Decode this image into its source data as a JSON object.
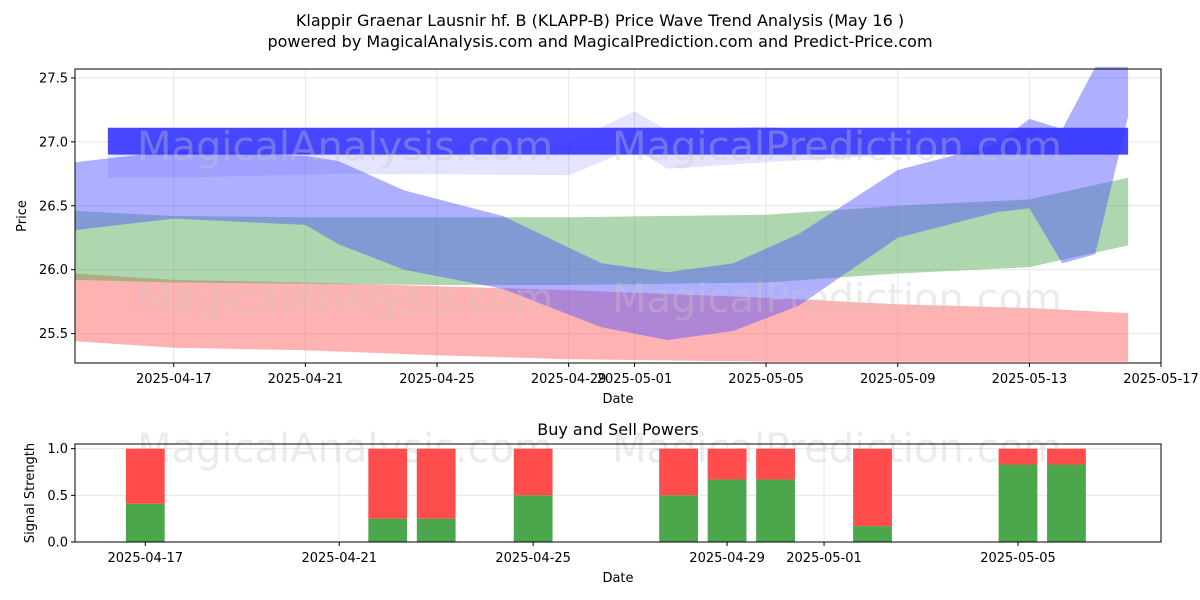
{
  "figure": {
    "title_line1": "Klappir Graenar Lausnir hf. B (KLAPP-B) Price Wave Trend Analysis (May 16 )",
    "title_line2": "powered by MagicalAnalysis.com and MagicalPrediction.com and Predict-Price.com",
    "watermarks": [
      "MagicalAnalysis.com",
      "MagicalPrediction.com"
    ]
  },
  "colors": {
    "blue": "#4d4dff",
    "green": "#4da64d",
    "red": "#ff6666",
    "buy": "#4ca64c",
    "sell": "#ff4c4c",
    "grid": "#e6e6e6"
  },
  "chart_data": [
    {
      "type": "area",
      "title": "",
      "xlabel": "Date",
      "ylabel": "Price",
      "x_range": [
        "2025-04-14",
        "2025-05-17"
      ],
      "ylim": [
        25.27,
        27.57
      ],
      "x_ticks": [
        "2025-04-17",
        "2025-04-21",
        "2025-04-25",
        "2025-04-29",
        "2025-05-01",
        "2025-05-05",
        "2025-05-09",
        "2025-05-13",
        "2025-05-17"
      ],
      "y_ticks": [
        25.5,
        26.0,
        26.5,
        27.0,
        27.5
      ],
      "grid": true,
      "series": [
        {
          "color": "#ff6666",
          "opacity": 0.5,
          "x": [
            "2025-04-14",
            "2025-04-17",
            "2025-04-21",
            "2025-04-25",
            "2025-04-29",
            "2025-05-05",
            "2025-05-09",
            "2025-05-13",
            "2025-05-16"
          ],
          "upper": [
            25.97,
            25.92,
            25.9,
            25.87,
            25.84,
            25.78,
            25.73,
            25.7,
            25.66
          ],
          "lower": [
            25.44,
            25.39,
            25.37,
            25.33,
            25.3,
            25.28,
            25.28,
            25.28,
            25.28
          ]
        },
        {
          "color": "#4da64d",
          "opacity": 0.45,
          "x": [
            "2025-04-14",
            "2025-04-17",
            "2025-04-21",
            "2025-04-25",
            "2025-04-29",
            "2025-05-05",
            "2025-05-09",
            "2025-05-13",
            "2025-05-16"
          ],
          "upper": [
            26.46,
            26.42,
            26.41,
            26.41,
            26.41,
            26.43,
            26.5,
            26.55,
            26.72
          ],
          "lower": [
            25.92,
            25.9,
            25.89,
            25.88,
            25.88,
            25.9,
            25.97,
            26.02,
            26.19
          ]
        },
        {
          "color": "#4d4dff",
          "opacity": 0.45,
          "x": [
            "2025-04-14",
            "2025-04-17",
            "2025-04-21",
            "2025-04-22",
            "2025-04-24",
            "2025-04-27",
            "2025-04-30",
            "2025-05-02",
            "2025-05-04",
            "2025-05-06",
            "2025-05-09",
            "2025-05-12",
            "2025-05-13",
            "2025-05-14",
            "2025-05-15",
            "2025-05-16"
          ],
          "upper": [
            26.84,
            26.93,
            26.89,
            26.85,
            26.62,
            26.42,
            26.05,
            25.98,
            26.05,
            26.28,
            26.78,
            26.98,
            27.18,
            27.1,
            27.6,
            27.6
          ],
          "lower": [
            26.31,
            26.4,
            26.35,
            26.2,
            26.0,
            25.85,
            25.55,
            25.45,
            25.52,
            25.72,
            26.25,
            26.45,
            26.48,
            26.05,
            26.12,
            27.2
          ]
        },
        {
          "color": "#4d4dff",
          "opacity": 0.15,
          "x": [
            "2025-04-15",
            "2025-04-17",
            "2025-04-22",
            "2025-04-29",
            "2025-05-01",
            "2025-05-02",
            "2025-05-05",
            "2025-05-09",
            "2025-05-12"
          ],
          "upper": [
            26.89,
            26.96,
            26.97,
            26.99,
            27.24,
            27.09,
            27.12,
            27.02,
            26.96
          ],
          "lower": [
            26.72,
            26.72,
            26.75,
            26.74,
            26.95,
            26.79,
            26.84,
            26.9,
            26.91
          ]
        },
        {
          "color": "#3333ff",
          "opacity": 0.9,
          "x": [
            "2025-04-15",
            "2025-05-16"
          ],
          "upper": [
            27.11,
            27.11
          ],
          "lower": [
            26.9,
            26.9
          ]
        }
      ]
    },
    {
      "type": "bar",
      "title": "Buy and Sell Powers",
      "xlabel": "Date",
      "ylabel": "Signal Strength",
      "x_range": [
        "2025-04-16",
        "2025-05-07"
      ],
      "ylim": [
        0,
        1.05
      ],
      "x_ticks": [
        "2025-04-17",
        "2025-04-21",
        "2025-04-25",
        "2025-04-29",
        "2025-05-01",
        "2025-05-05"
      ],
      "y_ticks": [
        0.0,
        0.5,
        1.0
      ],
      "grid": true,
      "categories": [
        "2025-04-17",
        "2025-04-22",
        "2025-04-23",
        "2025-04-25",
        "2025-04-28",
        "2025-04-29",
        "2025-04-30",
        "2025-05-02",
        "2025-05-05",
        "2025-05-06"
      ],
      "series": [
        {
          "color": "#4ca64c",
          "values": [
            0.41,
            0.25,
            0.25,
            0.5,
            0.5,
            0.67,
            0.67,
            0.17,
            0.83,
            0.83
          ]
        },
        {
          "color": "#ff4c4c",
          "values": [
            0.59,
            0.75,
            0.75,
            0.5,
            0.5,
            0.33,
            0.33,
            0.83,
            0.17,
            0.17
          ]
        }
      ]
    }
  ]
}
